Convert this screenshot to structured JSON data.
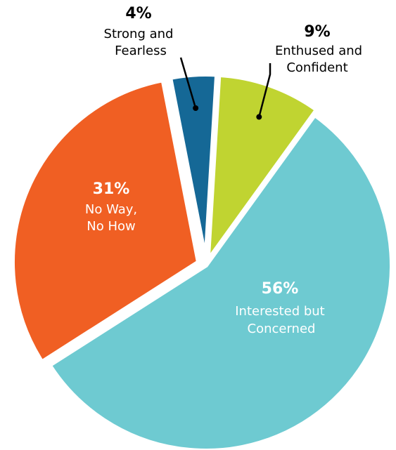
{
  "chart_data": {
    "type": "pie",
    "categories": [
      "Strong and Fearless",
      "Enthused and Confident",
      "Interested but Concerned",
      "No Way, No How"
    ],
    "values": [
      4,
      9,
      56,
      31
    ],
    "value_labels": [
      "4%",
      "9%",
      "56%",
      "31%"
    ],
    "label_lines": [
      [
        "Strong and",
        "Fearless"
      ],
      [
        "Enthused and",
        "Confident"
      ],
      [
        "Interested but",
        "Concerned"
      ],
      [
        "No Way,",
        "No How"
      ]
    ],
    "colors": [
      "#156896",
      "#c0d431",
      "#6ecad1",
      "#f05f23"
    ],
    "title": "",
    "legend": "none"
  }
}
